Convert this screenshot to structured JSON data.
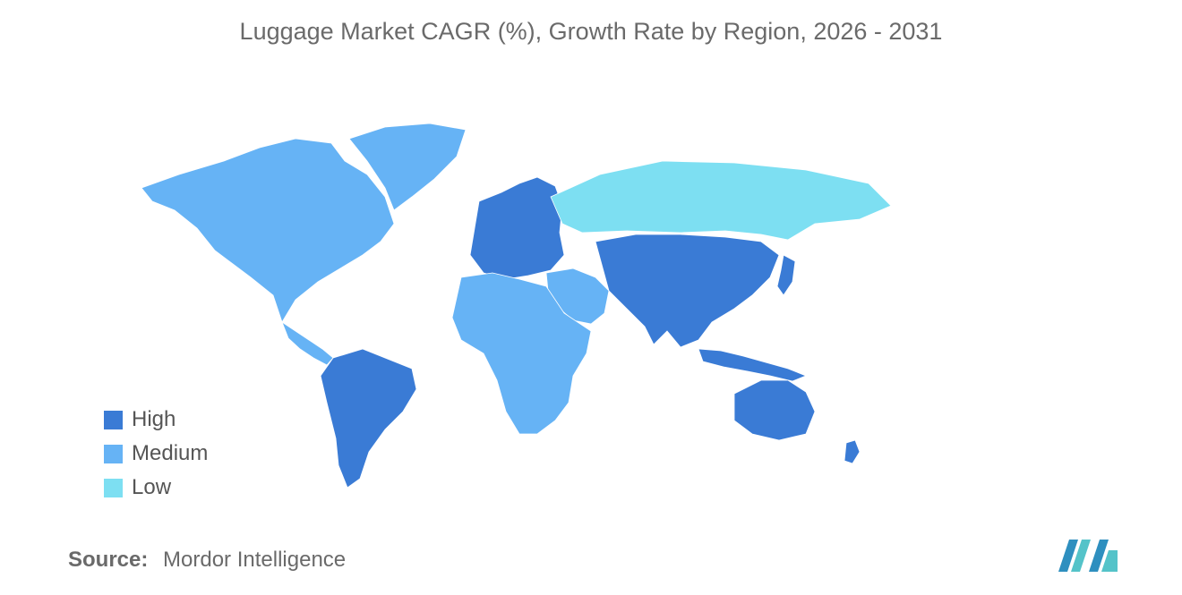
{
  "title": "Luggage Market CAGR (%), Growth Rate by Region, 2026 - 2031",
  "legend": [
    {
      "label": "High",
      "color": "#3a7bd5"
    },
    {
      "label": "Medium",
      "color": "#66b3f5"
    },
    {
      "label": "Low",
      "color": "#7ddff2"
    }
  ],
  "no_data_color": "#9e9e9e",
  "regions": {
    "north_america": "Medium",
    "greenland": "Medium",
    "central_america": "Medium",
    "south_america": "High",
    "europe": "High",
    "russia": "Low",
    "middle_east": "Medium",
    "africa": "Medium",
    "asia": "High",
    "oceania": "High"
  },
  "source": {
    "label": "Source:",
    "value": "Mordor Intelligence"
  },
  "logo": "mordor-intelligence-logo"
}
